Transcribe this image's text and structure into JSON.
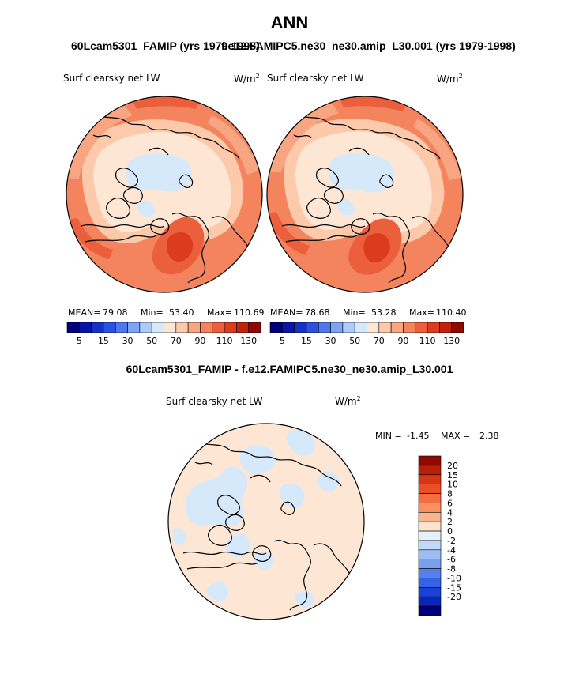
{
  "figure": {
    "title": "ANN",
    "case_left": "60Lcam5301_FAMIP (yrs 1979-1998)",
    "case_right": "f.e12.FAMIPC5.ne30_ne30.amip_L30.001 (yrs 1979-1998)",
    "diff_title": "60Lcam5301_FAMIP - f.e12.FAMIPC5.ne30_ne30.amip_L30.001"
  },
  "panels": {
    "left": {
      "variable": "Surf clearsky net LW",
      "units": "W/m",
      "units_sup": "2",
      "mean_label": "MEAN=",
      "mean": "79.08",
      "min_label": "Min=",
      "min": "53.40",
      "max_label": "Max=",
      "max": "110.69"
    },
    "right": {
      "variable": "Surf clearsky net LW",
      "units": "W/m",
      "units_sup": "2",
      "mean_label": "MEAN=",
      "mean": "78.68",
      "min_label": "Min=",
      "min": "53.28",
      "max_label": "Max=",
      "max": "110.40"
    },
    "diff": {
      "variable": "Surf clearsky net LW",
      "units": "W/m",
      "units_sup": "2",
      "min_label": "MIN =",
      "min": "-1.45",
      "max_label": "MAX =",
      "max": "2.38"
    }
  },
  "colorbar_main": {
    "colors": [
      "#00007f",
      "#0a14a8",
      "#1432c8",
      "#2a52e0",
      "#4f78f0",
      "#7ea4f7",
      "#aecaf9",
      "#d6e9fb",
      "#fde6d4",
      "#fcc9ab",
      "#f8a682",
      "#f3845e",
      "#ec5f3c",
      "#dc3c1e",
      "#c2220d",
      "#8e0a00"
    ],
    "tick_labels": [
      "5",
      "15",
      "30",
      "50",
      "70",
      "90",
      "110",
      "130"
    ]
  },
  "colorbar_diff": {
    "colors": [
      "#8e0a00",
      "#b81e08",
      "#d63412",
      "#ec4e26",
      "#f46c3f",
      "#f8905f",
      "#fab48e",
      "#fde3cc",
      "#e4f0fb",
      "#c2d8f7",
      "#9ebdf3",
      "#7a9fee",
      "#5680ea",
      "#3462e5",
      "#1a40d8",
      "#0a26b8",
      "#00007f"
    ],
    "tick_labels": [
      "20",
      "15",
      "10",
      "8",
      "6",
      "4",
      "2",
      "0",
      "-2",
      "-4",
      "-6",
      "-8",
      "-10",
      "-15",
      "-20"
    ]
  },
  "map_colors": {
    "ocean_warm": "#f3845e",
    "warm_mid": "#f8a682",
    "warm_light": "#fcc9ab",
    "pale": "#fde6d4",
    "cold": "#d6e9fb",
    "hot": "#ec5f3c",
    "hotter": "#dc3c1e",
    "diff_bg": "#fde6d4",
    "diff_neg": "#d6e9fb",
    "coast": "#000000"
  }
}
